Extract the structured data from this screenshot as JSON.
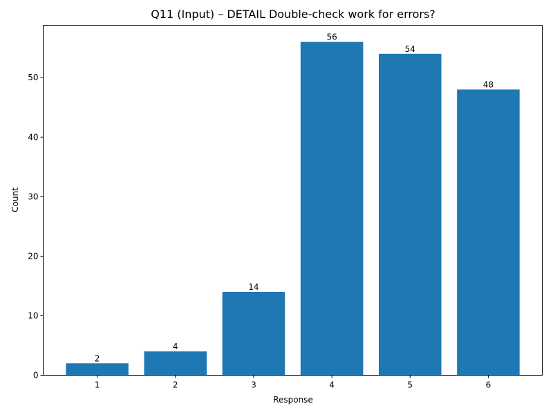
{
  "chart_data": {
    "type": "bar",
    "title": "Q11 (Input) – DETAIL Double-check work for errors?",
    "xlabel": "Response",
    "ylabel": "Count",
    "categories": [
      "1",
      "2",
      "3",
      "4",
      "5",
      "6"
    ],
    "values": [
      2,
      4,
      14,
      56,
      54,
      48
    ],
    "yticks": [
      0,
      10,
      20,
      30,
      40,
      50
    ],
    "ylim": [
      0,
      58.8
    ],
    "bar_color": "#1f77b4",
    "grid": false,
    "legend": "none"
  }
}
